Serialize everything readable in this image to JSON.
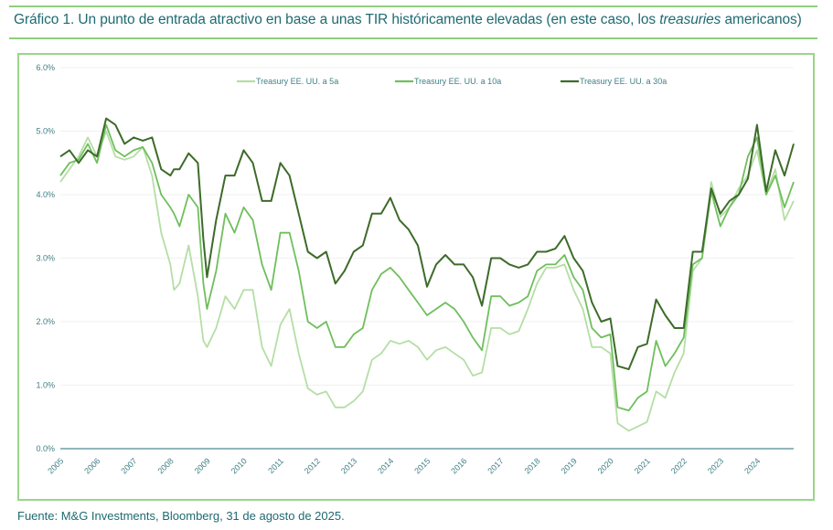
{
  "header": {
    "title_prefix": "Gráfico 1. Un punto de entrada atractivo en base a unas TIR históricamente elevadas (en este caso, los ",
    "title_italic": "treasuries",
    "title_suffix": " americanos)"
  },
  "footer": {
    "source": "Fuente: M&G Investments, Bloomberg, 31 de agosto de 2025."
  },
  "chart_data": {
    "type": "line",
    "title": "Gráfico 1. Un punto de entrada atractivo en base a unas TIR históricamente elevadas (en este caso, los treasuries americanos)",
    "xlabel": "",
    "ylabel": "",
    "ylim": [
      0,
      6
    ],
    "xlim": [
      2005,
      2025
    ],
    "yticks": [
      "0.0%",
      "1.0%",
      "2.0%",
      "3.0%",
      "4.0%",
      "5.0%",
      "6.0%"
    ],
    "xticks": [
      "2005",
      "2006",
      "2007",
      "2008",
      "2009",
      "2010",
      "2011",
      "2012",
      "2013",
      "2014",
      "2015",
      "2016",
      "2017",
      "2018",
      "2019",
      "2020",
      "2021",
      "2022",
      "2023",
      "2024"
    ],
    "grid": true,
    "legend_position": "top-center",
    "x": [
      2005.0,
      2005.25,
      2005.5,
      2005.75,
      2006.0,
      2006.25,
      2006.5,
      2006.75,
      2007.0,
      2007.25,
      2007.5,
      2007.75,
      2008.0,
      2008.1,
      2008.25,
      2008.5,
      2008.75,
      2008.9,
      2009.0,
      2009.25,
      2009.5,
      2009.75,
      2010.0,
      2010.25,
      2010.5,
      2010.75,
      2011.0,
      2011.25,
      2011.5,
      2011.75,
      2012.0,
      2012.25,
      2012.5,
      2012.75,
      2013.0,
      2013.25,
      2013.5,
      2013.75,
      2014.0,
      2014.25,
      2014.5,
      2014.75,
      2015.0,
      2015.25,
      2015.5,
      2015.75,
      2016.0,
      2016.25,
      2016.5,
      2016.75,
      2017.0,
      2017.25,
      2017.5,
      2017.75,
      2018.0,
      2018.25,
      2018.5,
      2018.75,
      2019.0,
      2019.25,
      2019.5,
      2019.75,
      2020.0,
      2020.2,
      2020.5,
      2020.75,
      2021.0,
      2021.25,
      2021.5,
      2021.75,
      2022.0,
      2022.25,
      2022.5,
      2022.75,
      2023.0,
      2023.25,
      2023.5,
      2023.75,
      2024.0,
      2024.25,
      2024.5,
      2024.75,
      2025.0
    ],
    "series": [
      {
        "name": "Treasury EE. UU. a 5a",
        "color": "#b5dea6",
        "values": [
          4.2,
          4.4,
          4.6,
          4.9,
          4.6,
          5.0,
          4.6,
          4.55,
          4.6,
          4.75,
          4.3,
          3.4,
          2.9,
          2.5,
          2.6,
          3.2,
          2.4,
          1.7,
          1.6,
          1.9,
          2.4,
          2.2,
          2.5,
          2.5,
          1.6,
          1.3,
          1.95,
          2.2,
          1.5,
          0.95,
          0.85,
          0.9,
          0.65,
          0.65,
          0.75,
          0.9,
          1.4,
          1.5,
          1.7,
          1.65,
          1.7,
          1.6,
          1.4,
          1.55,
          1.6,
          1.5,
          1.4,
          1.15,
          1.2,
          1.9,
          1.9,
          1.8,
          1.85,
          2.2,
          2.6,
          2.85,
          2.85,
          2.9,
          2.5,
          2.2,
          1.6,
          1.6,
          1.5,
          0.4,
          0.28,
          0.35,
          0.42,
          0.9,
          0.8,
          1.2,
          1.5,
          2.8,
          3.0,
          4.2,
          3.65,
          3.8,
          4.1,
          4.3,
          4.7,
          4.0,
          4.4,
          3.6,
          3.9,
          3.7
        ]
      },
      {
        "name": "Treasury EE. UU. a 10a",
        "color": "#6fbf5c",
        "values": [
          4.3,
          4.5,
          4.55,
          4.8,
          4.5,
          5.1,
          4.7,
          4.6,
          4.7,
          4.75,
          4.5,
          4.0,
          3.8,
          3.7,
          3.5,
          4.0,
          3.8,
          2.6,
          2.2,
          2.8,
          3.7,
          3.4,
          3.8,
          3.6,
          2.9,
          2.5,
          3.4,
          3.4,
          2.8,
          2.0,
          1.9,
          2.0,
          1.6,
          1.6,
          1.8,
          1.9,
          2.5,
          2.75,
          2.85,
          2.7,
          2.5,
          2.3,
          2.1,
          2.2,
          2.3,
          2.2,
          2.0,
          1.75,
          1.55,
          2.4,
          2.4,
          2.25,
          2.3,
          2.4,
          2.8,
          2.9,
          2.9,
          3.05,
          2.7,
          2.5,
          1.9,
          1.75,
          1.8,
          0.65,
          0.6,
          0.8,
          0.9,
          1.7,
          1.3,
          1.5,
          1.75,
          2.9,
          3.0,
          4.05,
          3.5,
          3.8,
          4.0,
          4.6,
          4.9,
          4.0,
          4.3,
          3.8,
          4.2,
          4.25
        ]
      },
      {
        "name": "Treasury EE. UU. a 30a",
        "color": "#3d6b2a",
        "values": [
          4.6,
          4.7,
          4.5,
          4.7,
          4.6,
          5.2,
          5.1,
          4.8,
          4.9,
          4.85,
          4.9,
          4.4,
          4.3,
          4.4,
          4.4,
          4.65,
          4.5,
          3.3,
          2.7,
          3.6,
          4.3,
          4.3,
          4.7,
          4.5,
          3.9,
          3.9,
          4.5,
          4.3,
          3.7,
          3.1,
          3.0,
          3.1,
          2.6,
          2.8,
          3.1,
          3.2,
          3.7,
          3.7,
          3.95,
          3.6,
          3.45,
          3.2,
          2.55,
          2.9,
          3.05,
          2.9,
          2.9,
          2.7,
          2.25,
          3.0,
          3.0,
          2.9,
          2.85,
          2.9,
          3.1,
          3.1,
          3.15,
          3.35,
          3.0,
          2.8,
          2.3,
          2.0,
          2.05,
          1.3,
          1.25,
          1.6,
          1.65,
          2.35,
          2.1,
          1.9,
          1.9,
          3.1,
          3.1,
          4.1,
          3.7,
          3.9,
          4.0,
          4.25,
          5.1,
          4.05,
          4.7,
          4.3,
          4.8,
          4.9
        ]
      }
    ]
  }
}
